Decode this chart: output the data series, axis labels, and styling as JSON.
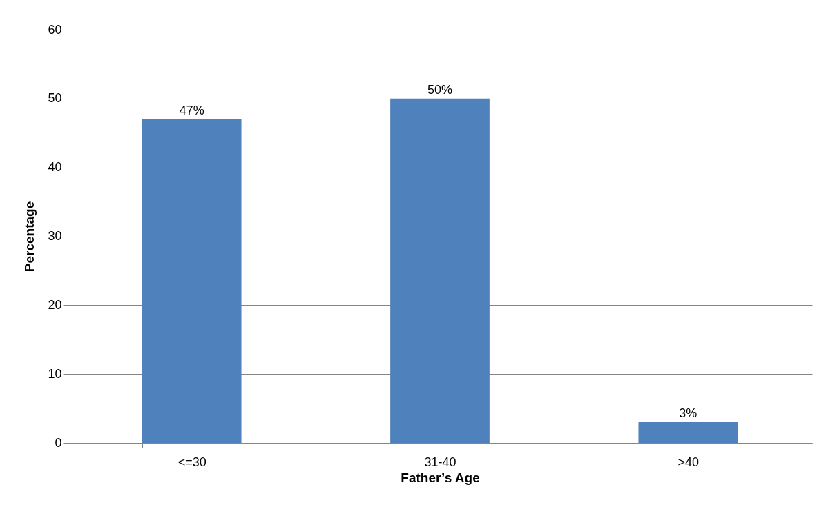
{
  "chart_data": {
    "type": "bar",
    "xlabel": "Father’s Age",
    "ylabel": "Percentage",
    "categories": [
      "<=30",
      "31-40",
      ">40"
    ],
    "values": [
      47,
      50,
      3
    ],
    "value_labels": [
      "47%",
      "50%",
      "3%"
    ],
    "color": "#4f81bd",
    "ylim": [
      0,
      60
    ],
    "yticks": [
      0,
      10,
      20,
      30,
      40,
      50,
      60
    ],
    "grid": "y"
  }
}
